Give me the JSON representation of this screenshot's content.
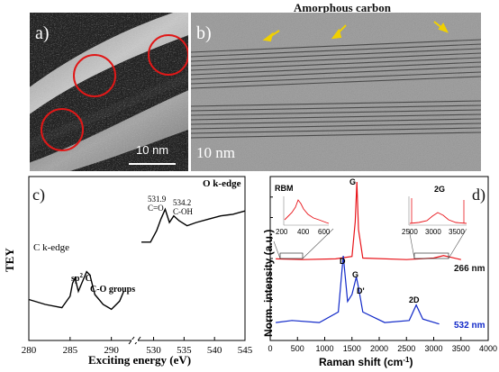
{
  "panel_a": {
    "label": "a)",
    "scale_bar": "10 nm"
  },
  "panel_b": {
    "label": "b)",
    "title": "Amorphous carbon",
    "scale_bar": "10 nm"
  },
  "panel_c": {
    "label": "c)",
    "ylabel": "TEY",
    "xlabel": "Exciting energy (eV)",
    "c_edge_label": "C k-edge",
    "o_edge_label": "O k-edge",
    "annotations": {
      "sp2": "sp",
      "sp2_sup": "2",
      "sp2_c": " C",
      "co_groups": "C-O groups",
      "peak_531": "531.9",
      "c_double_o": "C=O",
      "peak_534": "534.2",
      "c_oh": "C-OH"
    }
  },
  "panel_d": {
    "label": "d)",
    "ylabel": "Norm. intensity (a.u.)",
    "xlabel": "Raman shift (cm",
    "xlabel_sup": "-1",
    "xlabel_end": ")",
    "peaks": {
      "rbm": "RBM",
      "g_top": "G",
      "two_g": "2G",
      "d": "D",
      "g_bottom": "G",
      "d_prime": "D'",
      "two_d": "2D"
    },
    "inset_rbm_ticks": [
      "200",
      "400",
      "600"
    ],
    "inset_2g_ticks": [
      "2500",
      "3000",
      "3500"
    ],
    "series_top_label": "266 nm",
    "series_bottom_label": "532 nm"
  },
  "chart_data": [
    {
      "type": "line",
      "panel": "c",
      "xlabel": "Exciting energy (eV)",
      "ylabel": "TEY",
      "segments": [
        {
          "name": "C k-edge",
          "xlim": [
            280,
            292
          ],
          "ticks": [
            280,
            285,
            290
          ],
          "x": [
            280,
            282,
            284,
            285,
            285.3,
            285.6,
            286,
            286.5,
            287,
            287.4,
            288,
            289,
            290,
            291,
            291.5
          ],
          "y": [
            0.25,
            0.22,
            0.2,
            0.27,
            0.35,
            0.38,
            0.3,
            0.36,
            0.42,
            0.4,
            0.28,
            0.22,
            0.19,
            0.24,
            0.3
          ]
        },
        {
          "name": "O k-edge",
          "xlim": [
            528,
            545
          ],
          "ticks": [
            530,
            535,
            540,
            545
          ],
          "x": [
            528,
            529.5,
            530.5,
            531.2,
            531.9,
            532.6,
            533.3,
            534.2,
            535.5,
            537,
            539,
            541,
            543,
            545
          ],
          "y": [
            0.6,
            0.6,
            0.67,
            0.74,
            0.8,
            0.72,
            0.76,
            0.73,
            0.7,
            0.72,
            0.74,
            0.76,
            0.77,
            0.79
          ]
        }
      ]
    },
    {
      "type": "line",
      "panel": "d",
      "xlabel": "Raman shift (cm-1)",
      "ylabel": "Norm. intensity (a.u.)",
      "xlim": [
        0,
        4000
      ],
      "xticks": [
        0,
        500,
        1000,
        1500,
        2000,
        2500,
        3000,
        3500,
        4000
      ],
      "series": [
        {
          "name": "266 nm",
          "color": "#e8141a",
          "x": [
            100,
            600,
            1200,
            1500,
            1560,
            1590,
            1620,
            1700,
            2500,
            3000,
            3180,
            3500
          ],
          "y": [
            0.03,
            0.02,
            0.03,
            0.06,
            0.5,
            1.0,
            0.4,
            0.04,
            0.02,
            0.04,
            0.07,
            0.02
          ]
        },
        {
          "name": "532 nm",
          "color": "#1028c8",
          "x": [
            100,
            400,
            900,
            1250,
            1340,
            1420,
            1500,
            1580,
            1620,
            1700,
            2100,
            2550,
            2680,
            2800,
            3100
          ],
          "y": [
            0.05,
            0.08,
            0.05,
            0.2,
            1.0,
            0.35,
            0.45,
            0.7,
            0.55,
            0.2,
            0.05,
            0.08,
            0.3,
            0.1,
            0.03
          ]
        }
      ]
    }
  ]
}
